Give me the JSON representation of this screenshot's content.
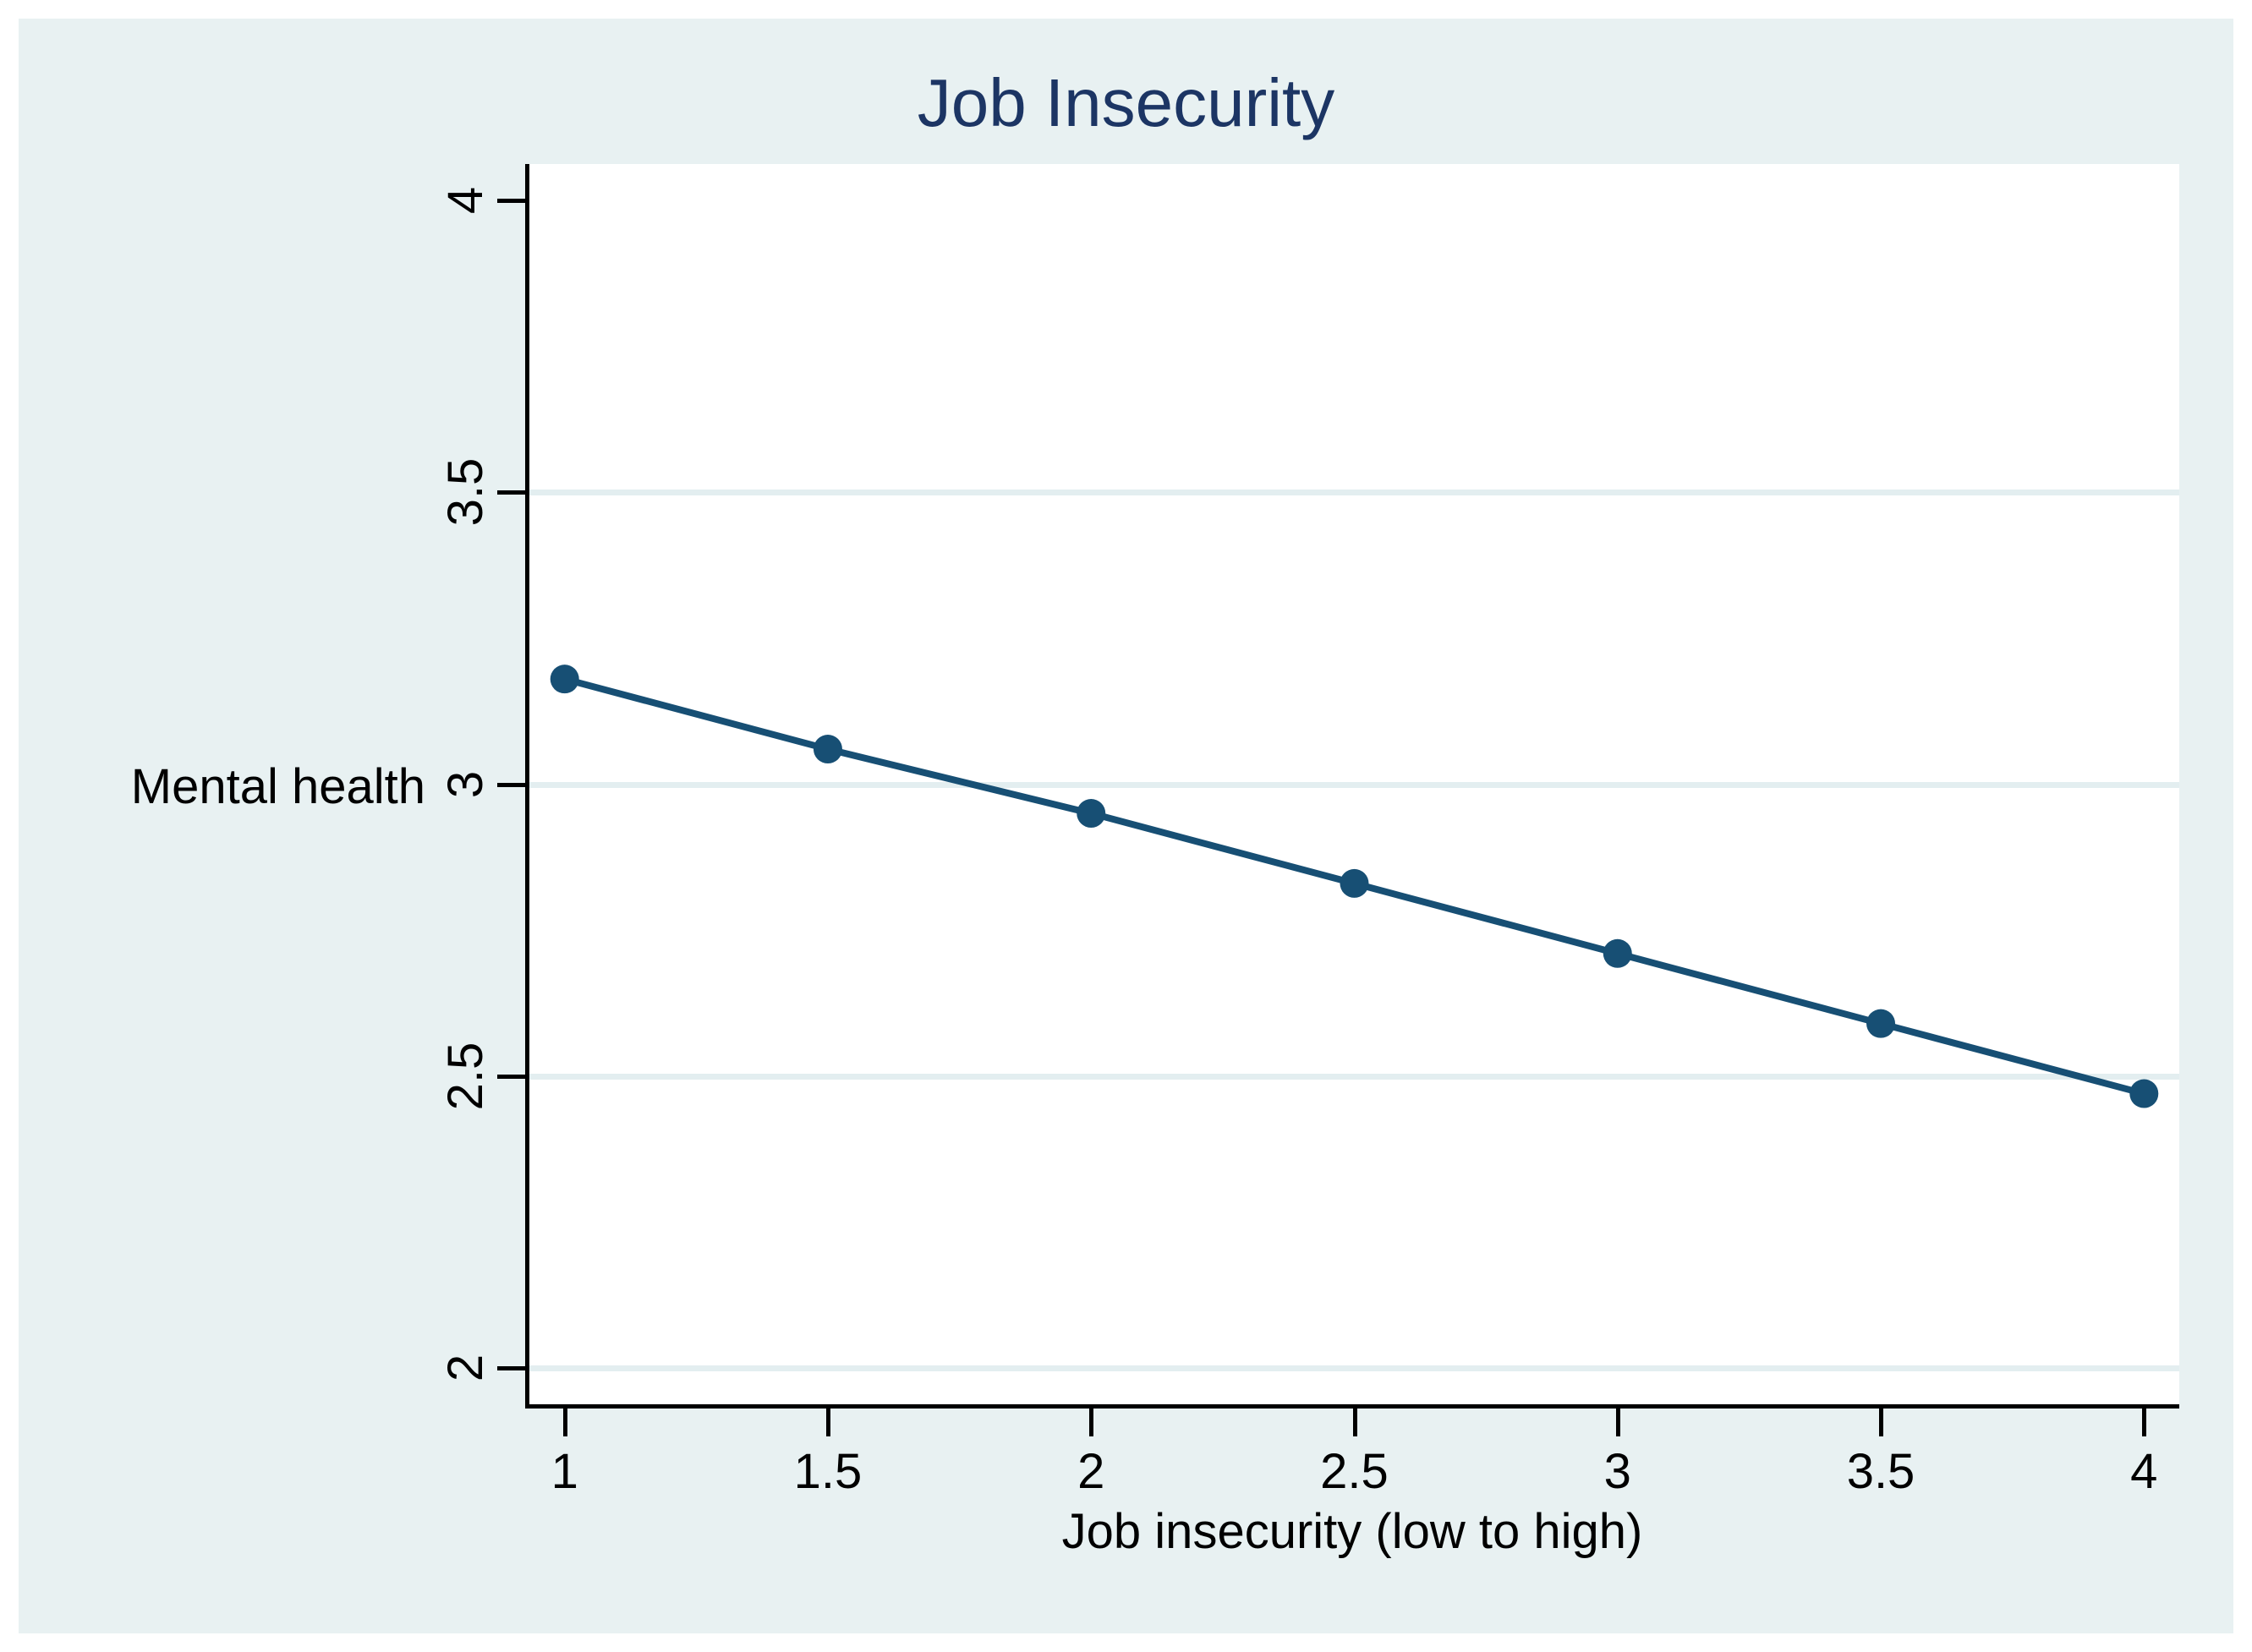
{
  "figure": {
    "colors": {
      "outer_border": "#ffffff",
      "background": "#e8f1f2",
      "plot_background": "#ffffff",
      "axis": "#000000",
      "grid": "#e3eef0",
      "line": "#174f74",
      "marker": "#174f74",
      "title_text": "#1c3564",
      "tick_text": "#000000"
    }
  },
  "chart_data": {
    "type": "line",
    "title": "Job Insecurity",
    "xlabel": "Job insecurity (low to high)",
    "ylabel": "Mental health",
    "x": [
      1,
      1.5,
      2,
      2.5,
      3,
      3.5,
      4
    ],
    "y": [
      3.18,
      3.06,
      2.95,
      2.83,
      2.71,
      2.59,
      2.47
    ],
    "xticks": [
      1,
      1.5,
      2,
      2.5,
      3,
      3.5,
      4
    ],
    "xtick_labels": [
      "1",
      "1.5",
      "2",
      "2.5",
      "3",
      "3.5",
      "4"
    ],
    "yticks": [
      2,
      2.5,
      3,
      3.5,
      4
    ],
    "ytick_labels": [
      "2",
      "2.5",
      "3",
      "3.5",
      "4"
    ],
    "grid_yticks": [
      2,
      2.5,
      3,
      3.5
    ],
    "xlim": [
      0.933,
      4.067
    ],
    "ylim": [
      1.938,
      4.062
    ],
    "grid": "horizontal-only",
    "legend": "none",
    "marker": "filled-circle",
    "ytick_label_rotation_deg": -90
  }
}
